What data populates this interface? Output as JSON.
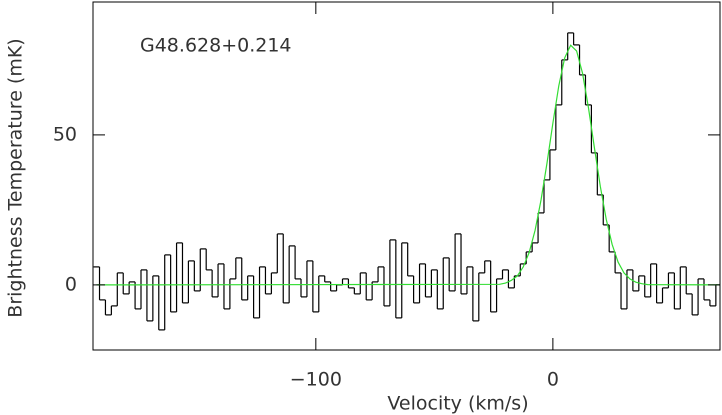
{
  "chart_data": {
    "type": "line",
    "annotation": "G48.628+0.214",
    "xlabel": "Velocity (km/s)",
    "ylabel": "Brightness Temperature (mK)",
    "xlim": [
      -194,
      70.5
    ],
    "ylim": [
      -21.7,
      94.3
    ],
    "xticks": [
      {
        "value": -100,
        "label": "−100"
      },
      0
    ],
    "yticks": [
      0,
      50
    ],
    "series": [
      {
        "style": "step",
        "color": "#000000",
        "x": [
          -192.5,
          -190,
          -187.5,
          -185,
          -182.5,
          -180,
          -177.5,
          -175,
          -172.5,
          -170,
          -167.5,
          -165,
          -162.5,
          -160,
          -157.5,
          -155,
          -152.5,
          -150,
          -147.5,
          -145,
          -142.5,
          -140,
          -137.5,
          -135,
          -132.5,
          -130,
          -127.5,
          -125,
          -122.5,
          -120,
          -117.5,
          -115,
          -112.5,
          -110,
          -107.5,
          -105,
          -102.5,
          -100,
          -97.5,
          -95,
          -92.5,
          -90,
          -87.5,
          -85,
          -82.5,
          -80,
          -77.5,
          -75,
          -72.5,
          -70,
          -67.5,
          -65,
          -62.5,
          -60,
          -57.5,
          -55,
          -52.5,
          -50,
          -47.5,
          -45,
          -42.5,
          -40,
          -37.5,
          -35,
          -32.5,
          -30,
          -27.5,
          -25,
          -22.5,
          -20,
          -17.5,
          -15,
          -12.5,
          -10,
          -7.5,
          -5,
          -2.5,
          0,
          2.5,
          5,
          7.5,
          10,
          12.5,
          15,
          17.5,
          20,
          22.5,
          25,
          27.5,
          30,
          32.5,
          35,
          37.5,
          40,
          42.5,
          45,
          47.5,
          50,
          52.5,
          55,
          57.5,
          60,
          62.5,
          65,
          67.5,
          70
        ],
        "values": [
          6,
          -5,
          -10,
          -7,
          4,
          -3,
          1,
          -8,
          5,
          -12,
          3,
          -15,
          10,
          -9,
          14,
          -6,
          8,
          -2,
          12,
          5,
          -4,
          7,
          -8,
          2,
          9,
          -5,
          3,
          -11,
          6,
          -3,
          4,
          17,
          -6,
          13,
          2,
          -4,
          8,
          -9,
          3,
          1,
          -2,
          0,
          2,
          -1,
          -3,
          4,
          -5,
          1,
          6,
          -7,
          15,
          -11,
          14,
          3,
          -6,
          7,
          -4,
          5,
          -8,
          9,
          -2,
          17,
          -3,
          6,
          -12,
          4,
          8,
          -9,
          2,
          5,
          -1,
          3,
          7,
          11,
          14,
          24,
          35,
          45,
          60,
          75,
          84,
          80,
          70,
          60,
          44,
          30,
          20,
          11,
          4,
          -8,
          5,
          -2,
          3,
          -4,
          7,
          -6,
          -1,
          4,
          -8,
          6,
          -3,
          -10,
          2,
          -5,
          -7,
          0
        ]
      },
      {
        "style": "line",
        "color": "#33dd33",
        "x": [
          -192.5,
          -22.5,
          -20,
          -17.5,
          -15,
          -12.5,
          -10,
          -7.5,
          -5,
          -2.5,
          0,
          2.5,
          5,
          7.5,
          10,
          12.5,
          15,
          17.5,
          20,
          22.5,
          25,
          27.5,
          30,
          32.5,
          35,
          37.5,
          40,
          70
        ],
        "values": [
          0,
          0.2,
          0.6,
          1.5,
          3.0,
          6.0,
          10.8,
          18.2,
          28.3,
          40.5,
          53.9,
          66.4,
          75.7,
          79.9,
          78.0,
          70.6,
          59.1,
          45.8,
          32.9,
          21.9,
          13.5,
          7.6,
          4.0,
          2.0,
          0.9,
          0.4,
          0.1,
          0
        ]
      }
    ]
  }
}
